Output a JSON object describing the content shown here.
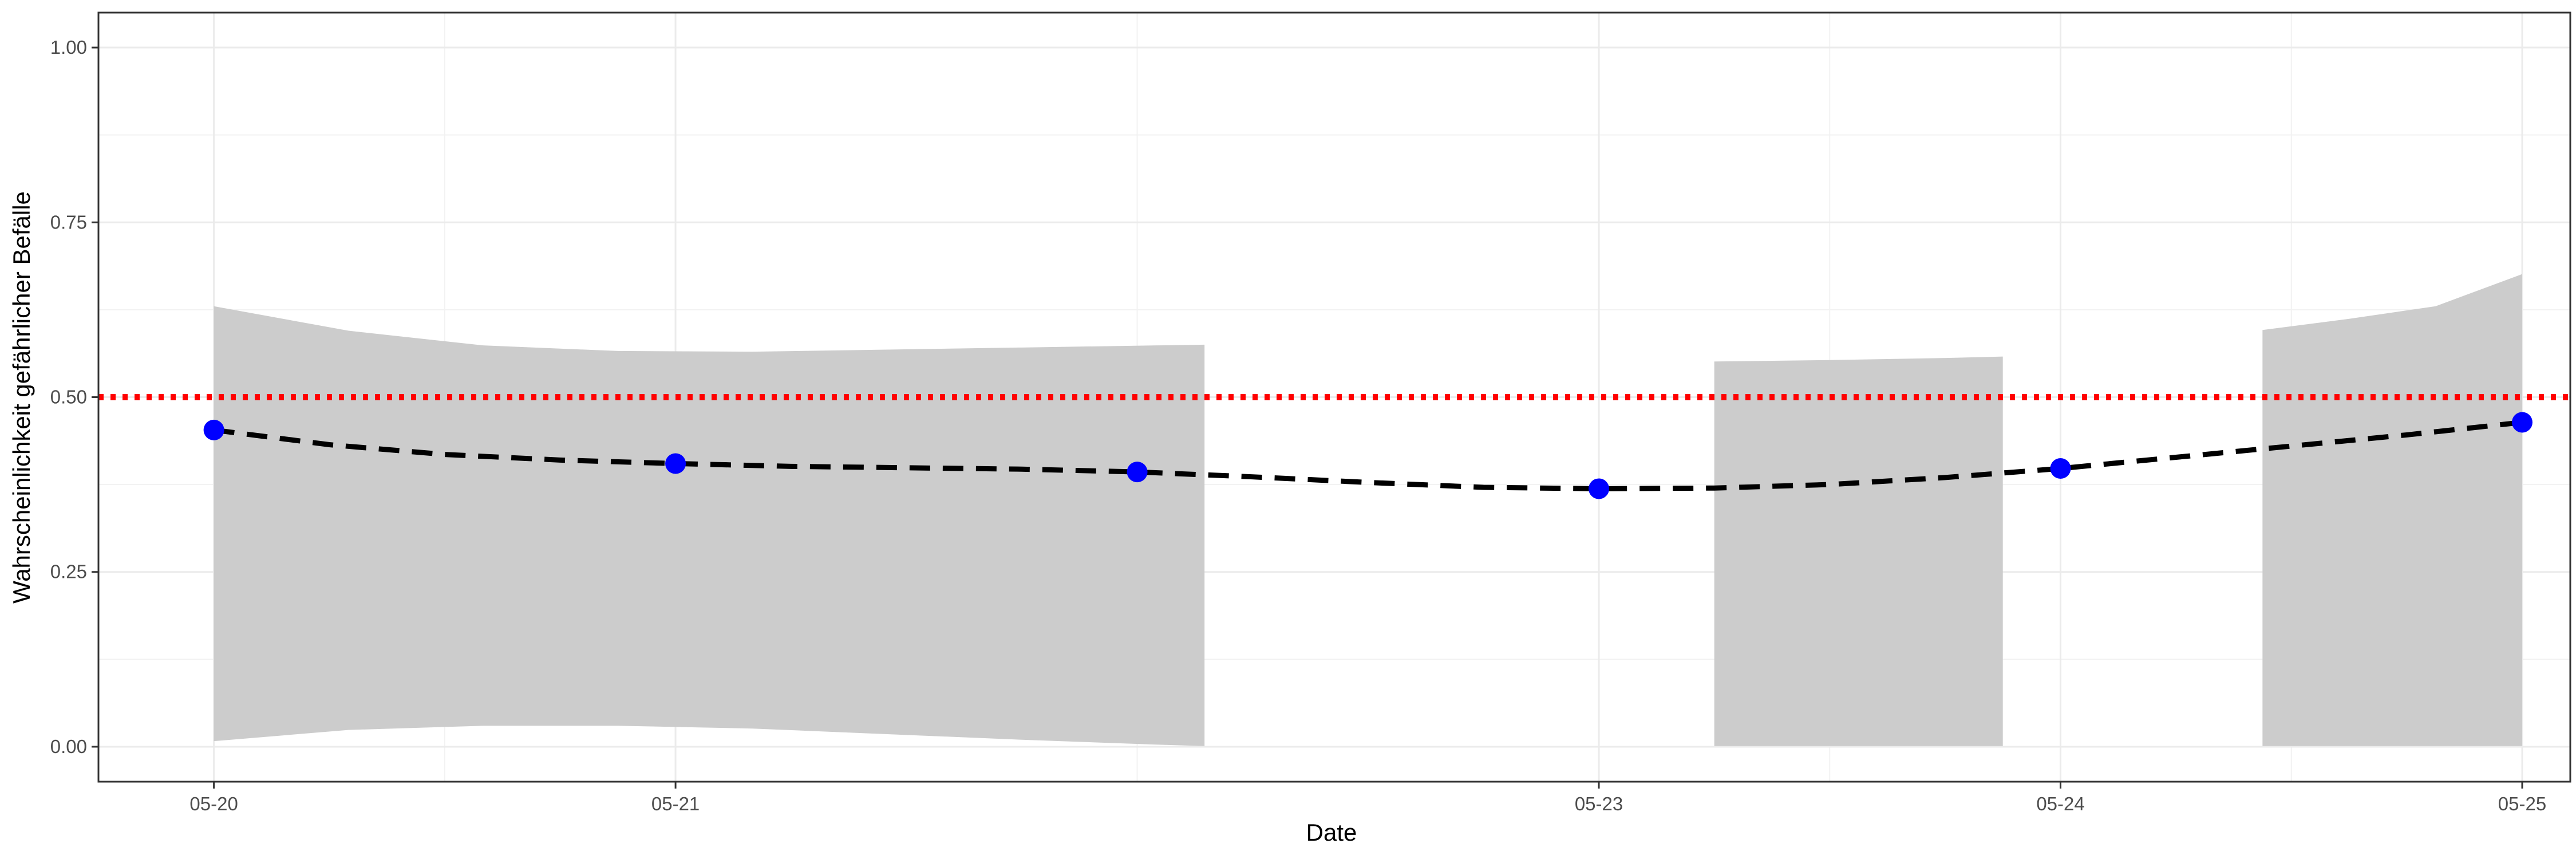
{
  "chart_data": {
    "type": "line",
    "xlabel": "Date",
    "ylabel": "Wahrscheinlichkeit gefährlicher Befälle",
    "x_tick_labels": [
      "05-20",
      "05-21",
      "05-23",
      "05-24",
      "05-25"
    ],
    "x_tick_dates": [
      "2021-05-20",
      "2021-05-21",
      "2021-05-23",
      "2021-05-24",
      "2021-05-25"
    ],
    "xlim": [
      "2021-05-19T18:00",
      "2021-05-25T02:30"
    ],
    "ylim": [
      -0.05,
      1.05
    ],
    "y_tick_values": [
      0.0,
      0.25,
      0.5,
      0.75,
      1.0
    ],
    "y_tick_labels": [
      "0.00",
      "0.25",
      "0.50",
      "0.75",
      "1.00"
    ],
    "grid": true,
    "legend": "none",
    "points": {
      "name": "",
      "x": [
        "2021-05-20T00:00",
        "2021-05-21T00:00",
        "2021-05-22T00:00",
        "2021-05-23T00:00",
        "2021-05-24T00:00",
        "2021-05-25T00:00"
      ],
      "y": [
        0.453,
        0.405,
        0.393,
        0.369,
        0.398,
        0.464
      ],
      "color": "#0000ff"
    },
    "trend": {
      "x": [
        "2021-05-20T00:00",
        "2021-05-20T06:00",
        "2021-05-20T12:00",
        "2021-05-20T18:00",
        "2021-05-21T00:00",
        "2021-05-21T06:00",
        "2021-05-21T12:00",
        "2021-05-21T18:00",
        "2021-05-22T00:00",
        "2021-05-22T06:00",
        "2021-05-22T12:00",
        "2021-05-22T18:00",
        "2021-05-23T00:00",
        "2021-05-23T06:00",
        "2021-05-23T12:00",
        "2021-05-23T18:00",
        "2021-05-24T00:00",
        "2021-05-24T06:00",
        "2021-05-24T12:00",
        "2021-05-24T18:00",
        "2021-05-25T00:00"
      ],
      "y": [
        0.453,
        0.432,
        0.418,
        0.41,
        0.405,
        0.401,
        0.399,
        0.397,
        0.393,
        0.386,
        0.378,
        0.371,
        0.369,
        0.37,
        0.375,
        0.385,
        0.398,
        0.414,
        0.43,
        0.446,
        0.464
      ],
      "color": "#000000",
      "style": "dashed"
    },
    "ribbons": [
      {
        "x": [
          "2021-05-20T00:00",
          "2021-05-20T07:00",
          "2021-05-20T14:00",
          "2021-05-20T21:00",
          "2021-05-21T04:00",
          "2021-05-21T11:00",
          "2021-05-21T18:00",
          "2021-05-22T01:00",
          "2021-05-22T03:30"
        ],
        "lower": [
          0.008,
          0.024,
          0.03,
          0.03,
          0.026,
          0.018,
          0.01,
          0.003,
          0.001
        ],
        "upper": [
          0.63,
          0.595,
          0.574,
          0.566,
          0.565,
          0.568,
          0.571,
          0.574,
          0.575
        ],
        "color": "#cccccc"
      },
      {
        "x": [
          "2021-05-23T06:00",
          "2021-05-23T12:00",
          "2021-05-23T18:00",
          "2021-05-23T21:00"
        ],
        "lower": [
          0.001,
          0.001,
          0.001,
          0.001
        ],
        "upper": [
          0.551,
          0.553,
          0.556,
          0.558
        ],
        "color": "#cccccc"
      },
      {
        "x": [
          "2021-05-24T10:30",
          "2021-05-24T15:00",
          "2021-05-24T19:30",
          "2021-05-25T00:00"
        ],
        "lower": [
          0.001,
          0.001,
          0.001,
          0.001
        ],
        "upper": [
          0.596,
          0.612,
          0.63,
          0.676
        ],
        "color": "#cccccc"
      }
    ],
    "threshold": {
      "y": 0.5,
      "color": "#ff0000",
      "style": "dotted"
    }
  }
}
